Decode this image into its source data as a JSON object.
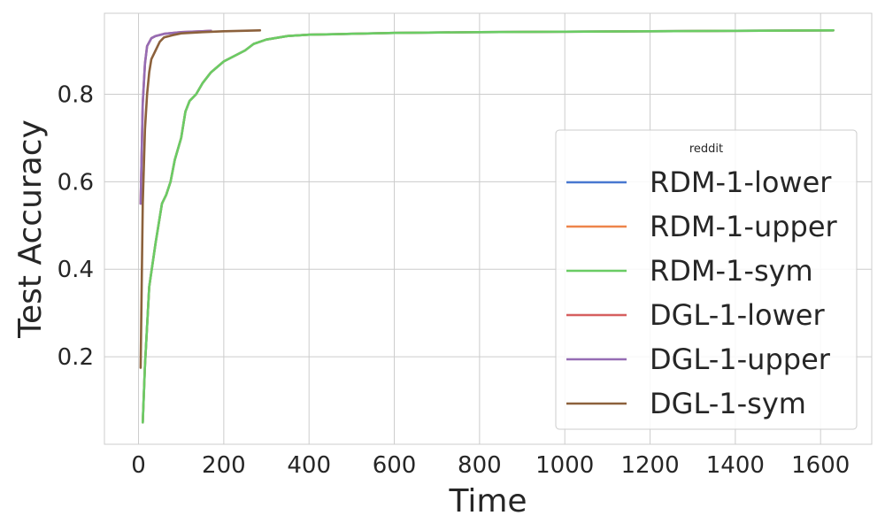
{
  "chart_data": {
    "type": "line",
    "title": "",
    "xlabel": "Time",
    "ylabel": "Test Accuracy",
    "xlim": [
      -80,
      1720
    ],
    "ylim": [
      0.0,
      0.985
    ],
    "xticks": [
      0,
      200,
      400,
      600,
      800,
      1000,
      1200,
      1400,
      1600
    ],
    "yticks": [
      0.2,
      0.4,
      0.6,
      0.8
    ],
    "xtick_labels": [
      "0",
      "200",
      "400",
      "600",
      "800",
      "1000",
      "1200",
      "1400",
      "1600"
    ],
    "ytick_labels": [
      "0.2",
      "0.4",
      "0.6",
      "0.8"
    ],
    "grid": true,
    "legend": {
      "title": "reddit",
      "placement": "center-right"
    },
    "series": [
      {
        "name": "RDM-1-lower",
        "color": "#4878d0",
        "x": [
          10,
          15,
          25,
          40,
          55,
          65,
          75,
          85,
          100,
          110,
          120,
          135,
          150,
          170,
          200,
          250,
          270,
          300,
          350,
          400,
          500,
          600,
          800,
          1000,
          1200,
          1400,
          1630
        ],
        "y": [
          0.05,
          0.18,
          0.36,
          0.46,
          0.55,
          0.57,
          0.6,
          0.65,
          0.7,
          0.76,
          0.785,
          0.8,
          0.825,
          0.85,
          0.875,
          0.9,
          0.915,
          0.925,
          0.933,
          0.936,
          0.938,
          0.94,
          0.942,
          0.943,
          0.944,
          0.945,
          0.946
        ]
      },
      {
        "name": "RDM-1-upper",
        "color": "#ee854a",
        "x": [
          10,
          15,
          25,
          40,
          55,
          65,
          75,
          85,
          100,
          110,
          120,
          135,
          150,
          170,
          200,
          250,
          270,
          300,
          350,
          400,
          500,
          600,
          800,
          1000,
          1200,
          1400,
          1630
        ],
        "y": [
          0.05,
          0.18,
          0.36,
          0.46,
          0.55,
          0.57,
          0.6,
          0.65,
          0.7,
          0.76,
          0.785,
          0.8,
          0.825,
          0.85,
          0.875,
          0.9,
          0.915,
          0.925,
          0.933,
          0.936,
          0.938,
          0.94,
          0.942,
          0.943,
          0.944,
          0.945,
          0.946
        ]
      },
      {
        "name": "RDM-1-sym",
        "color": "#6acc64",
        "x": [
          10,
          15,
          25,
          40,
          55,
          65,
          75,
          85,
          100,
          110,
          120,
          135,
          150,
          170,
          200,
          250,
          270,
          300,
          350,
          400,
          500,
          600,
          800,
          1000,
          1200,
          1400,
          1630
        ],
        "y": [
          0.05,
          0.18,
          0.36,
          0.46,
          0.55,
          0.57,
          0.6,
          0.65,
          0.7,
          0.76,
          0.785,
          0.8,
          0.825,
          0.85,
          0.875,
          0.9,
          0.915,
          0.925,
          0.933,
          0.936,
          0.938,
          0.94,
          0.942,
          0.943,
          0.944,
          0.945,
          0.946
        ]
      },
      {
        "name": "DGL-1-lower",
        "color": "#d65f5f",
        "x": [
          5,
          10,
          15,
          20,
          30,
          40,
          60,
          100,
          150,
          170
        ],
        "y": [
          0.55,
          0.78,
          0.87,
          0.91,
          0.928,
          0.933,
          0.938,
          0.942,
          0.944,
          0.945
        ]
      },
      {
        "name": "DGL-1-upper",
        "color": "#956cb4",
        "x": [
          5,
          10,
          15,
          20,
          30,
          40,
          60,
          100,
          150,
          170
        ],
        "y": [
          0.55,
          0.78,
          0.87,
          0.91,
          0.928,
          0.933,
          0.938,
          0.942,
          0.944,
          0.945
        ]
      },
      {
        "name": "DGL-1-sym",
        "color": "#8c613c",
        "x": [
          5,
          10,
          15,
          20,
          25,
          30,
          40,
          50,
          60,
          80,
          100,
          150,
          200,
          285
        ],
        "y": [
          0.175,
          0.55,
          0.72,
          0.8,
          0.85,
          0.88,
          0.9,
          0.92,
          0.93,
          0.935,
          0.939,
          0.942,
          0.944,
          0.946
        ]
      }
    ]
  }
}
